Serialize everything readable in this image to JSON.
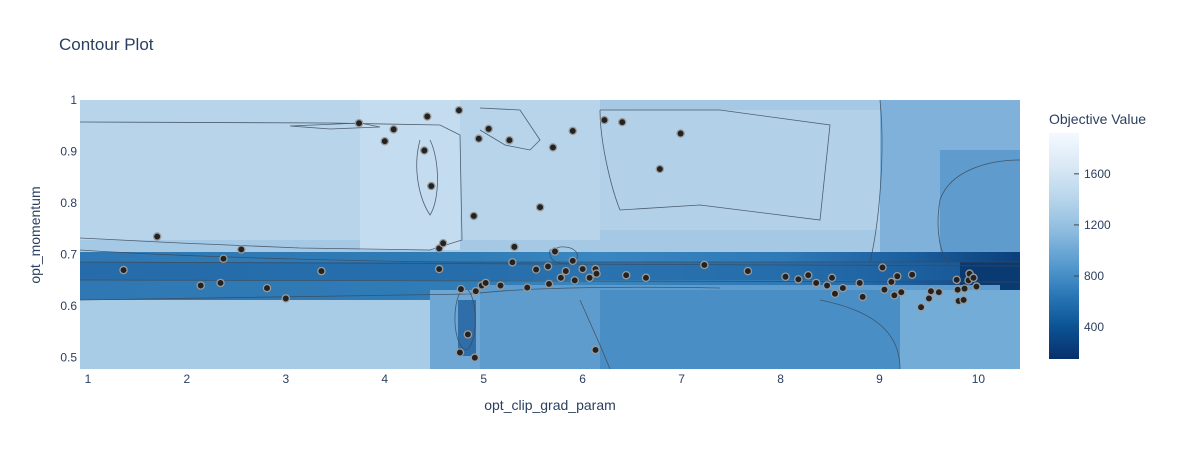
{
  "chart_data": {
    "type": "contour",
    "title": "Contour Plot",
    "xlabel": "opt_clip_grad_param",
    "ylabel": "opt_momentum",
    "xlim": [
      0.92,
      10.42
    ],
    "ylim": [
      0.478,
      1.0
    ],
    "x_ticks": [
      1,
      2,
      3,
      4,
      5,
      6,
      7,
      8,
      9,
      10
    ],
    "y_ticks": [
      0.5,
      0.6,
      0.7,
      0.8,
      0.9,
      1
    ],
    "y_tick_labels": [
      "0.5",
      "0.6",
      "0.7",
      "0.8",
      "0.9",
      "1"
    ],
    "colorbar": {
      "title": "Objective Value",
      "ticks": [
        400,
        800,
        1200,
        1600
      ],
      "range": [
        150,
        1920
      ],
      "colors": [
        "#08306b",
        "#0b5394",
        "#2a78b8",
        "#5a9dd0",
        "#8fbddf",
        "#b9d6ec",
        "#dae9f5",
        "#f4f9ff"
      ]
    },
    "grid": false,
    "points": [
      {
        "x": 1.36,
        "y": 0.67
      },
      {
        "x": 1.7,
        "y": 0.735
      },
      {
        "x": 2.14,
        "y": 0.64
      },
      {
        "x": 2.34,
        "y": 0.645
      },
      {
        "x": 2.37,
        "y": 0.692
      },
      {
        "x": 2.55,
        "y": 0.71
      },
      {
        "x": 2.81,
        "y": 0.635
      },
      {
        "x": 3.0,
        "y": 0.615
      },
      {
        "x": 3.36,
        "y": 0.668
      },
      {
        "x": 3.74,
        "y": 0.955
      },
      {
        "x": 4.0,
        "y": 0.92
      },
      {
        "x": 4.09,
        "y": 0.943
      },
      {
        "x": 4.4,
        "y": 0.902
      },
      {
        "x": 4.43,
        "y": 0.968
      },
      {
        "x": 4.47,
        "y": 0.833
      },
      {
        "x": 4.55,
        "y": 0.712
      },
      {
        "x": 4.55,
        "y": 0.672
      },
      {
        "x": 4.59,
        "y": 0.722
      },
      {
        "x": 4.75,
        "y": 0.98
      },
      {
        "x": 4.77,
        "y": 0.633
      },
      {
        "x": 4.76,
        "y": 0.51
      },
      {
        "x": 4.84,
        "y": 0.545
      },
      {
        "x": 4.9,
        "y": 0.775
      },
      {
        "x": 4.91,
        "y": 0.5
      },
      {
        "x": 4.92,
        "y": 0.629
      },
      {
        "x": 4.95,
        "y": 0.925
      },
      {
        "x": 4.98,
        "y": 0.64
      },
      {
        "x": 5.02,
        "y": 0.645
      },
      {
        "x": 5.05,
        "y": 0.944
      },
      {
        "x": 5.17,
        "y": 0.64
      },
      {
        "x": 5.26,
        "y": 0.922
      },
      {
        "x": 5.29,
        "y": 0.685
      },
      {
        "x": 5.31,
        "y": 0.715
      },
      {
        "x": 5.44,
        "y": 0.636
      },
      {
        "x": 5.53,
        "y": 0.671
      },
      {
        "x": 5.57,
        "y": 0.792
      },
      {
        "x": 5.65,
        "y": 0.677
      },
      {
        "x": 5.66,
        "y": 0.643
      },
      {
        "x": 5.7,
        "y": 0.908
      },
      {
        "x": 5.72,
        "y": 0.706
      },
      {
        "x": 5.78,
        "y": 0.655
      },
      {
        "x": 5.83,
        "y": 0.668
      },
      {
        "x": 5.9,
        "y": 0.94
      },
      {
        "x": 5.9,
        "y": 0.688
      },
      {
        "x": 5.92,
        "y": 0.65
      },
      {
        "x": 6.0,
        "y": 0.672
      },
      {
        "x": 6.07,
        "y": 0.655
      },
      {
        "x": 6.13,
        "y": 0.672
      },
      {
        "x": 6.14,
        "y": 0.663
      },
      {
        "x": 6.13,
        "y": 0.515
      },
      {
        "x": 6.22,
        "y": 0.961
      },
      {
        "x": 6.4,
        "y": 0.957
      },
      {
        "x": 6.44,
        "y": 0.66
      },
      {
        "x": 6.64,
        "y": 0.655
      },
      {
        "x": 6.78,
        "y": 0.866
      },
      {
        "x": 6.99,
        "y": 0.935
      },
      {
        "x": 7.23,
        "y": 0.68
      },
      {
        "x": 7.67,
        "y": 0.668
      },
      {
        "x": 8.05,
        "y": 0.657
      },
      {
        "x": 8.18,
        "y": 0.652
      },
      {
        "x": 8.28,
        "y": 0.66
      },
      {
        "x": 8.36,
        "y": 0.645
      },
      {
        "x": 8.47,
        "y": 0.64
      },
      {
        "x": 8.52,
        "y": 0.655
      },
      {
        "x": 8.55,
        "y": 0.624
      },
      {
        "x": 8.63,
        "y": 0.635
      },
      {
        "x": 8.8,
        "y": 0.645
      },
      {
        "x": 8.83,
        "y": 0.618
      },
      {
        "x": 9.03,
        "y": 0.675
      },
      {
        "x": 9.05,
        "y": 0.632
      },
      {
        "x": 9.12,
        "y": 0.647
      },
      {
        "x": 9.15,
        "y": 0.621
      },
      {
        "x": 9.18,
        "y": 0.658
      },
      {
        "x": 9.22,
        "y": 0.627
      },
      {
        "x": 9.33,
        "y": 0.661
      },
      {
        "x": 9.42,
        "y": 0.598
      },
      {
        "x": 9.5,
        "y": 0.615
      },
      {
        "x": 9.52,
        "y": 0.629
      },
      {
        "x": 9.6,
        "y": 0.627
      },
      {
        "x": 9.78,
        "y": 0.651
      },
      {
        "x": 9.8,
        "y": 0.61
      },
      {
        "x": 9.79,
        "y": 0.632
      },
      {
        "x": 9.85,
        "y": 0.612
      },
      {
        "x": 9.86,
        "y": 0.634
      },
      {
        "x": 9.9,
        "y": 0.65
      },
      {
        "x": 9.91,
        "y": 0.663
      },
      {
        "x": 9.95,
        "y": 0.655
      },
      {
        "x": 9.98,
        "y": 0.638
      }
    ]
  }
}
